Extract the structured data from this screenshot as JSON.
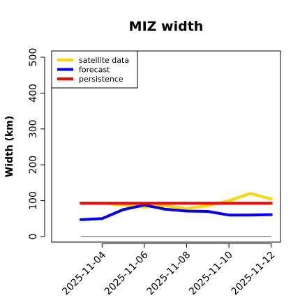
{
  "chart_data": {
    "type": "line",
    "title": "MIZ width",
    "xlabel": "",
    "ylabel": "Width (km)",
    "ylim": [
      0,
      500
    ],
    "yticks": [
      0,
      100,
      200,
      300,
      400,
      500
    ],
    "x": [
      "2025-11-03",
      "2025-11-04",
      "2025-11-05",
      "2025-11-06",
      "2025-11-07",
      "2025-11-08",
      "2025-11-09",
      "2025-11-10",
      "2025-11-11",
      "2025-11-12"
    ],
    "xticks": [
      "2025-11-04",
      "2025-11-06",
      "2025-11-08",
      "2025-11-10",
      "2025-11-12"
    ],
    "highlighted_xtick": "2025-11-04",
    "highlight_color": "#228B22",
    "reference_line": 0,
    "reference_color": "#888888",
    "grid": false,
    "legend_position": "top-left",
    "series": [
      {
        "name": "satellite data",
        "color": "#FFD700",
        "values": [
          93,
          93,
          88,
          82,
          86,
          78,
          86,
          100,
          120,
          105
        ]
      },
      {
        "name": "forecast",
        "color": "#0000FF",
        "values": [
          47,
          50,
          75,
          88,
          76,
          71,
          70,
          60,
          60,
          61
        ]
      },
      {
        "name": "persistence",
        "color": "#FF0000",
        "values": [
          93,
          93,
          93,
          93,
          93,
          93,
          93,
          93,
          93,
          93
        ]
      }
    ]
  }
}
